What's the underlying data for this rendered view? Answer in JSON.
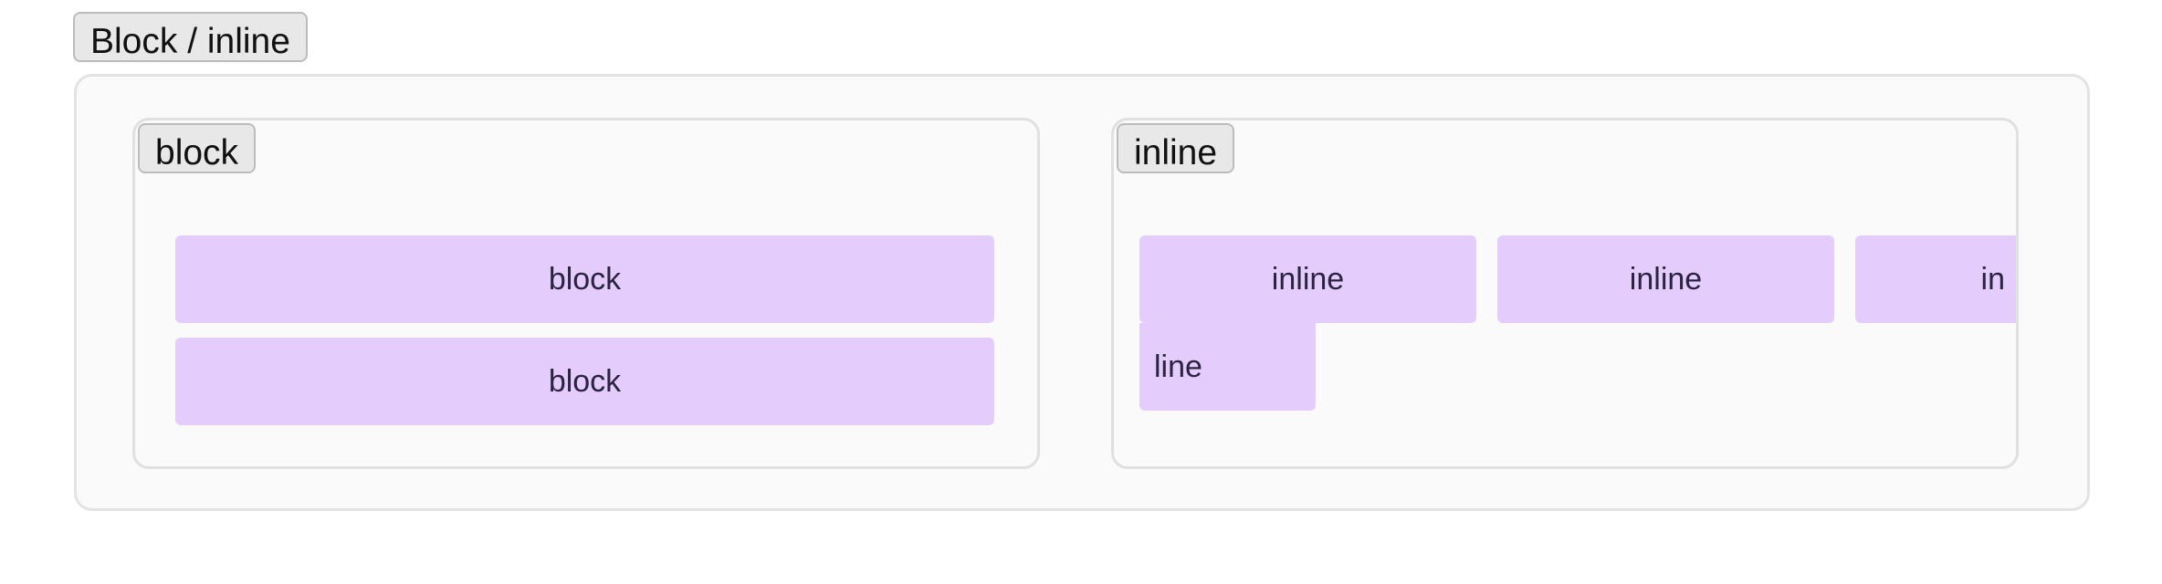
{
  "title": "Block / inline",
  "block_panel": {
    "label": "block",
    "items": [
      "block",
      "block"
    ]
  },
  "inline_panel": {
    "label": "inline",
    "items": [
      "inline",
      "inline",
      "in",
      "line"
    ]
  },
  "colors": {
    "box_fill": "#e4ccfd",
    "panel_bg": "#fafafa",
    "panel_border": "#e0e0e0",
    "tag_bg": "#e8e8e8"
  }
}
